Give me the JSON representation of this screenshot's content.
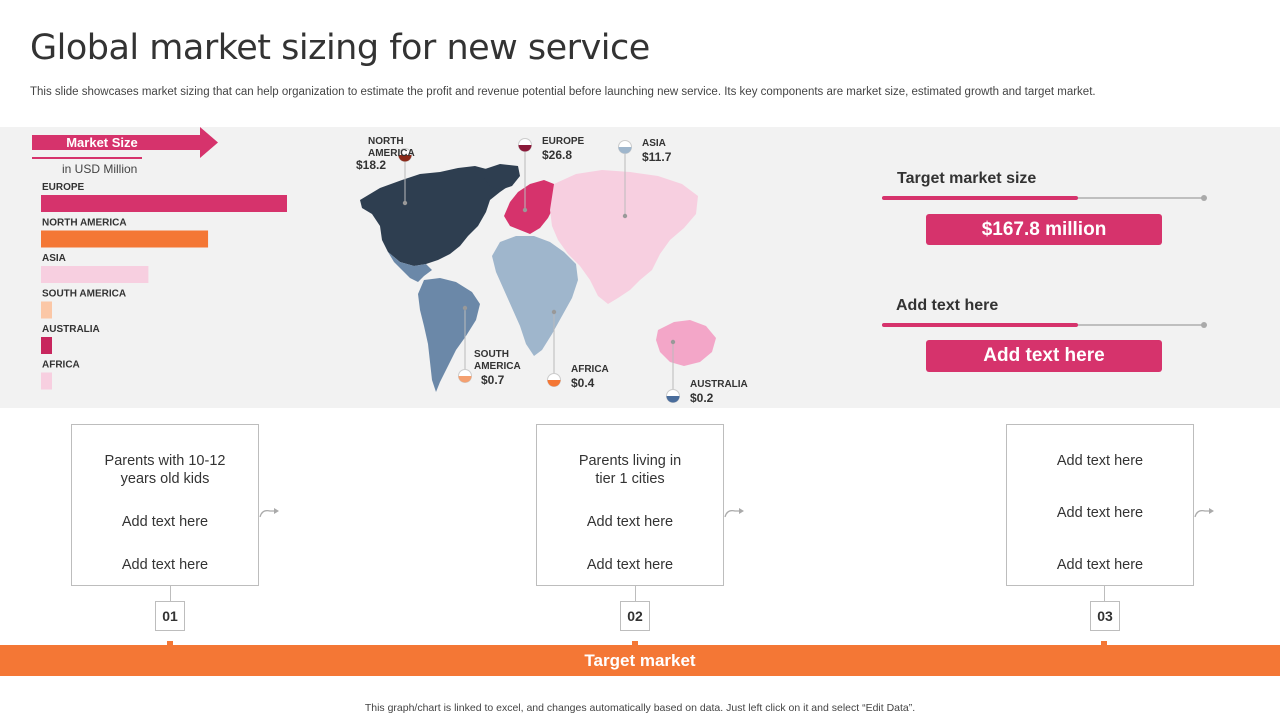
{
  "title": "Global market sizing for new service",
  "subtitle": "This slide showcases market sizing that can help organization to estimate the profit and revenue potential before launching new service. Its key components are market size, estimated growth and target market.",
  "market_size": {
    "label": "Market Size",
    "unit": "in USD Million"
  },
  "chart_data": {
    "type": "bar",
    "orientation": "horizontal",
    "title": "Market Size",
    "unit": "in USD Million",
    "categories": [
      "EUROPE",
      "NORTH  AMERICA",
      "ASIA",
      "SOUTH AMERICA",
      "AUSTRALIA",
      "AFRICA"
    ],
    "values": [
      26.8,
      18.2,
      11.7,
      0.7,
      0.2,
      0.4
    ],
    "colors": [
      "#d6336c",
      "#f47735",
      "#f7cfe0",
      "#fbc7a6",
      "#c8265e",
      "#f7cfe0"
    ],
    "xlim": [
      0,
      26.8
    ]
  },
  "map_pins": [
    {
      "id": "north-america",
      "name": "NORTH\nAMERICA",
      "value": "$18.2",
      "color": "#8b2a1a"
    },
    {
      "id": "europe",
      "name": "EUROPE",
      "value": "$26.8",
      "color": "#8b1a3a"
    },
    {
      "id": "asia",
      "name": "ASIA",
      "value": "$11.7",
      "color": "#9fb6cc"
    },
    {
      "id": "south-america",
      "name": "SOUTH\nAMERICA",
      "value": "$0.7",
      "color": "#f4a070"
    },
    {
      "id": "africa",
      "name": "AFRICA",
      "value": "$0.4",
      "color": "#f47735"
    },
    {
      "id": "australia",
      "name": "AUSTRALIA",
      "value": "$0.2",
      "color": "#4a6d9c"
    }
  ],
  "target_panels": [
    {
      "heading": "Target market size",
      "value": "$167.8 million"
    },
    {
      "heading": "Add text here",
      "value": "Add text here"
    }
  ],
  "cards": [
    {
      "number": "01",
      "lines": [
        "Parents with 10-12\nyears old kids",
        "Add text here",
        "Add text here"
      ]
    },
    {
      "number": "02",
      "lines": [
        "Parents living  in\ntier 1 cities",
        "Add text here",
        "Add text here"
      ]
    },
    {
      "number": "03",
      "lines": [
        "Add text here",
        "Add text here",
        "Add text here"
      ]
    }
  ],
  "target_market_label": "Target market",
  "footnote": "This graph/chart is linked to excel, and changes automatically based on data. Just left click on it and select “Edit Data”.",
  "colors": {
    "accent": "#d6336c",
    "orange": "#f47735",
    "navy": "#2e3e50",
    "steel": "#6b88a8",
    "pink": "#f7cfe0"
  }
}
